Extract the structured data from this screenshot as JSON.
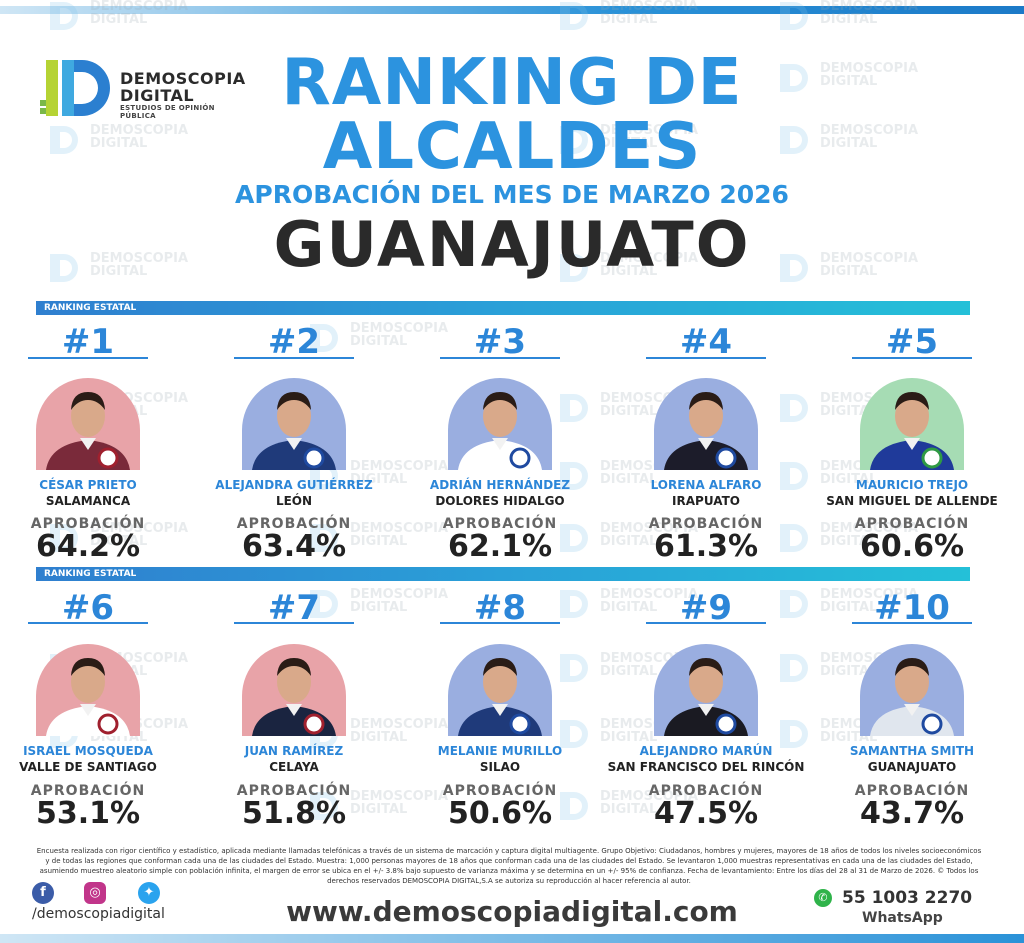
{
  "logo": {
    "line1": "DEMOSCOPIA",
    "line2": "DIGITAL",
    "sub": "ESTUDIOS DE OPINIÓN PÚBLICA"
  },
  "header": {
    "title_line1": "RANKING DE",
    "title_line2": "ALCALDES",
    "subtitle": "APROBACIÓN DEL MES DE MARZO 2026",
    "state": "GUANAJUATO"
  },
  "band_label": "RANKING ESTATAL",
  "approval_label": "APROBACIÓN",
  "mayors": [
    {
      "rank": "#1",
      "name": "CÉSAR PRIETO",
      "city": "SALAMANCA",
      "pct": "64.2%",
      "bg": "#e8a3a8",
      "suit": "#7a2a3a",
      "party": "morena"
    },
    {
      "rank": "#2",
      "name": "ALEJANDRA GUTIÉRREZ",
      "city": "LEÓN",
      "pct": "63.4%",
      "bg": "#9aaee0",
      "suit": "#1f3a7a",
      "party": "PAN"
    },
    {
      "rank": "#3",
      "name": "ADRIÁN HERNÁNDEZ",
      "city": "DOLORES HIDALGO",
      "pct": "62.1%",
      "bg": "#9aaee0",
      "suit": "#ffffff",
      "party": "PAN"
    },
    {
      "rank": "#4",
      "name": "LORENA ALFARO",
      "city": "IRAPUATO",
      "pct": "61.3%",
      "bg": "#9aaee0",
      "suit": "#1c1c2a",
      "party": "PAN"
    },
    {
      "rank": "#5",
      "name": "MAURICIO TREJO",
      "city": "SAN MIGUEL DE ALLENDE",
      "pct": "60.6%",
      "bg": "#a6dcb4",
      "suit": "#1f3a9a",
      "party": "PVEM"
    },
    {
      "rank": "#6",
      "name": "ISRAEL MOSQUEDA",
      "city": "VALLE DE SANTIAGO",
      "pct": "53.1%",
      "bg": "#e8a3a8",
      "suit": "#ffffff",
      "party": "morena"
    },
    {
      "rank": "#7",
      "name": "JUAN RAMÍREZ",
      "city": "CELAYA",
      "pct": "51.8%",
      "bg": "#e8a3a8",
      "suit": "#1a2440",
      "party": "morena"
    },
    {
      "rank": "#8",
      "name": "MELANIE MURILLO",
      "city": "SILAO",
      "pct": "50.6%",
      "bg": "#9aaee0",
      "suit": "#1f3a7a",
      "party": "PAN"
    },
    {
      "rank": "#9",
      "name": "ALEJANDRO MARÚN",
      "city": "SAN FRANCISCO DEL RINCÓN",
      "pct": "47.5%",
      "bg": "#9aaee0",
      "suit": "#1a1a22",
      "party": "PAN"
    },
    {
      "rank": "#10",
      "name": "SAMANTHA SMITH",
      "city": "GUANAJUATO",
      "pct": "43.7%",
      "bg": "#9aaee0",
      "suit": "#e0e6ee",
      "party": "PAN"
    }
  ],
  "methodology": "Encuesta realizada con rigor científico y estadístico, aplicada mediante llamadas telefónicas a través de un sistema de marcación y captura digital multiagente. Grupo Objetivo: Ciudadanos, hombres y mujeres, mayores de 18 años de todos los niveles socioeconómicos y de todas las regiones que conforman cada una de las ciudades del Estado. Muestra: 1,000 personas mayores de 18 años que conforman cada una de las ciudades del Estado. Se levantaron 1,000 muestras representativas en cada una de las ciudades del Estado, asumiendo muestreo aleatorio simple con población infinita, el margen de error se ubica en el +/- 3.8% bajo supuesto de varianza máxima y se determina en un +/- 95% de confianza. Fecha de levantamiento: Entre los días del 28 al 31 de Marzo de 2026. © Todos los derechos reservados DEMOSCOPIA DIGITAL,S.A se autoriza su reproducción al hacer referencia al autor.",
  "footer": {
    "handle": "/demoscopiadigital",
    "url": "www.demoscopiadigital.com",
    "phone": "55 1003 2270",
    "whatsapp": "WhatsApp"
  },
  "colors": {
    "accent": "#2c93df",
    "rank": "#2c86d8",
    "facebook": "#3b5ca8",
    "instagram": "#c1358a",
    "twitter": "#2aa3ee",
    "whatsapp_icon": "#2fb34a"
  }
}
